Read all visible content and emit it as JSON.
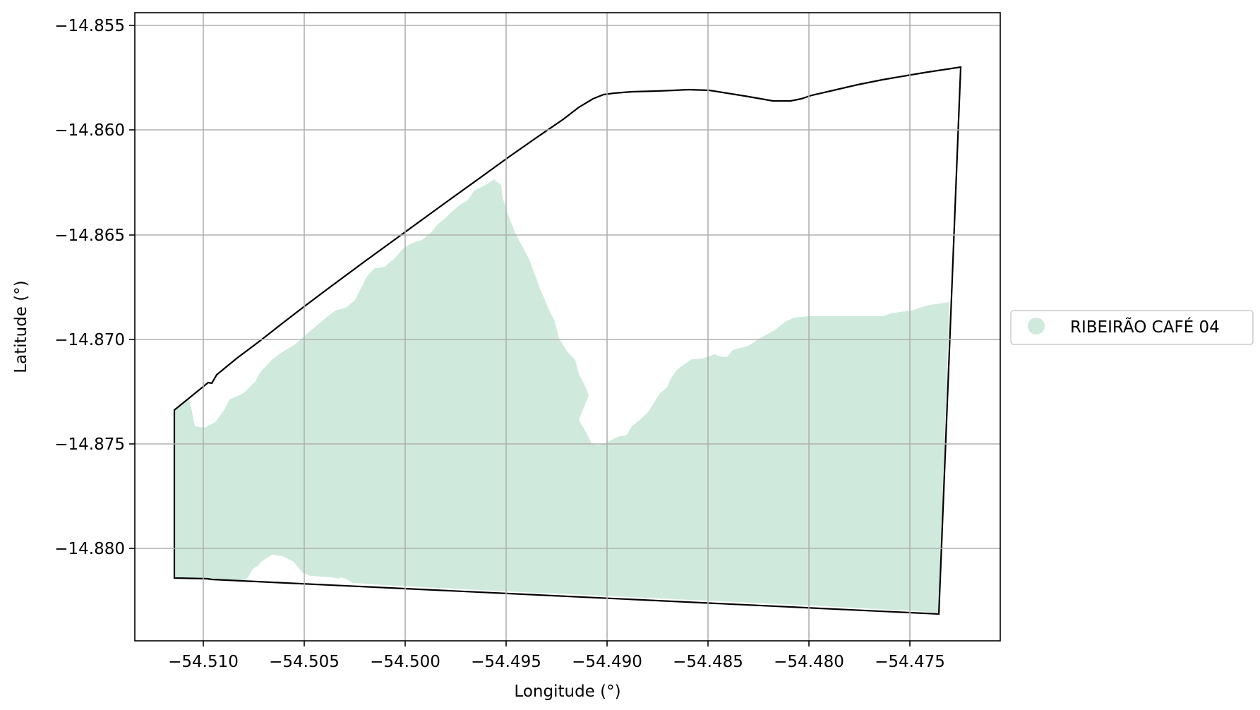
{
  "map": {
    "xlabel": "Longitude (°)",
    "ylabel": "Latitude (°)",
    "x_ticks": [
      "−54.510",
      "−54.505",
      "−54.500",
      "−54.495",
      "−54.490",
      "−54.485",
      "−54.480",
      "−54.475"
    ],
    "y_ticks": [
      "−14.855",
      "−14.860",
      "−14.865",
      "−14.870",
      "−14.875",
      "−14.880"
    ],
    "legend": {
      "label": "RIBEIRÃO CAFÉ 04",
      "color": "#cfeadd"
    },
    "colors": {
      "fill": "#cfeadd",
      "boundary": "#000000",
      "grid": "#b0b0b0"
    },
    "grid": true,
    "legend_placement": "right"
  }
}
